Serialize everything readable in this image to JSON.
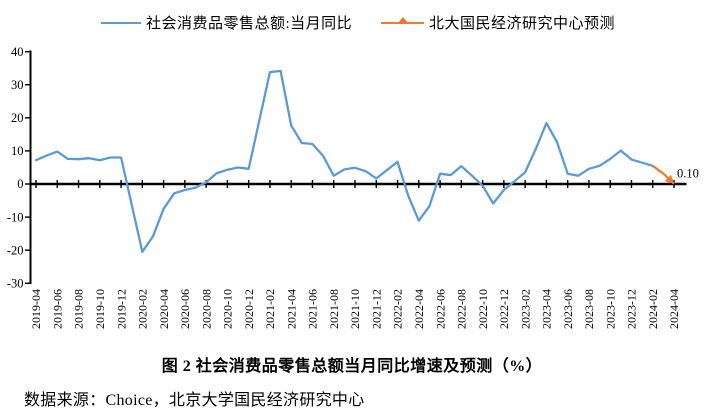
{
  "legend": [
    {
      "label": "社会消费品零售总额:当月同比",
      "color": "#5B9BD5",
      "marker": "line"
    },
    {
      "label": "北大国民经济研究中心预测",
      "color": "#ED7D31",
      "marker": "line-with-triangle"
    }
  ],
  "caption": "图 2  社会消费品零售总额当月同比增速及预测（%）",
  "source": "数据来源：Choice，北京大学国民经济研究中心",
  "colors": {
    "actual_line": "#5B9BD5",
    "forecast_line": "#ED7D31",
    "axis": "#000000",
    "background": "#FFFFFF"
  },
  "chart_data": {
    "type": "line",
    "title": "图 2 社会消费品零售总额当月同比增速及预测（%）",
    "xlabel": "",
    "ylabel": "",
    "ylim": [
      -30,
      40
    ],
    "yticks": [
      40,
      30,
      20,
      10,
      0,
      -10,
      -20,
      -30
    ],
    "grid": false,
    "legend_position": "top",
    "x": [
      "2019-04",
      "2019-05",
      "2019-06",
      "2019-07",
      "2019-08",
      "2019-09",
      "2019-10",
      "2019-11",
      "2019-12",
      "2020-01",
      "2020-02",
      "2020-03",
      "2020-04",
      "2020-05",
      "2020-06",
      "2020-07",
      "2020-08",
      "2020-09",
      "2020-10",
      "2020-11",
      "2020-12",
      "2021-01",
      "2021-02",
      "2021-03",
      "2021-04",
      "2021-05",
      "2021-06",
      "2021-07",
      "2021-08",
      "2021-09",
      "2021-10",
      "2021-11",
      "2021-12",
      "2022-01",
      "2022-02",
      "2022-03",
      "2022-04",
      "2022-05",
      "2022-06",
      "2022-07",
      "2022-08",
      "2022-09",
      "2022-10",
      "2022-11",
      "2022-12",
      "2023-01",
      "2023-02",
      "2023-03",
      "2023-04",
      "2023-05",
      "2023-06",
      "2023-07",
      "2023-08",
      "2023-09",
      "2023-10",
      "2023-11",
      "2023-12",
      "2024-01",
      "2024-02",
      "2024-03",
      "2024-04"
    ],
    "xtick_labels": [
      "2019-04",
      "2019-06",
      "2019-08",
      "2019-10",
      "2019-12",
      "2020-02",
      "2020-04",
      "2020-06",
      "2020-08",
      "2020-10",
      "2020-12",
      "2021-02",
      "2021-04",
      "2021-06",
      "2021-08",
      "2021-10",
      "2021-12",
      "2022-02",
      "2022-04",
      "2022-06",
      "2022-08",
      "2022-10",
      "2022-12",
      "2023-02",
      "2023-04",
      "2023-06",
      "2023-08",
      "2023-10",
      "2023-12",
      "2024-02",
      "2024-04"
    ],
    "series": [
      {
        "name": "社会消费品零售总额:当月同比",
        "color": "#5B9BD5",
        "values": [
          7.2,
          8.6,
          9.8,
          7.6,
          7.5,
          7.8,
          7.2,
          8.0,
          8.0,
          null,
          -20.5,
          -15.8,
          -7.5,
          -2.8,
          -1.8,
          -1.1,
          0.5,
          3.3,
          4.3,
          5.0,
          4.6,
          null,
          33.8,
          34.2,
          17.7,
          12.4,
          12.1,
          8.5,
          2.5,
          4.4,
          4.9,
          3.9,
          1.7,
          null,
          6.7,
          -3.5,
          -11.1,
          -6.7,
          3.1,
          2.7,
          5.4,
          2.5,
          -0.5,
          -5.9,
          -1.8,
          null,
          3.5,
          10.6,
          18.4,
          12.7,
          3.1,
          2.5,
          4.6,
          5.5,
          7.6,
          10.1,
          7.4,
          null,
          5.5,
          null,
          null
        ]
      },
      {
        "name": "北大国民经济研究中心预测",
        "color": "#ED7D31",
        "month_indices": [
          58,
          59,
          60
        ],
        "values": [
          5.5,
          3.1,
          0.1
        ],
        "arrow_end": true
      }
    ],
    "annotations": [
      {
        "text": "0.10",
        "x": "2024-04",
        "y": 0.1
      }
    ]
  }
}
